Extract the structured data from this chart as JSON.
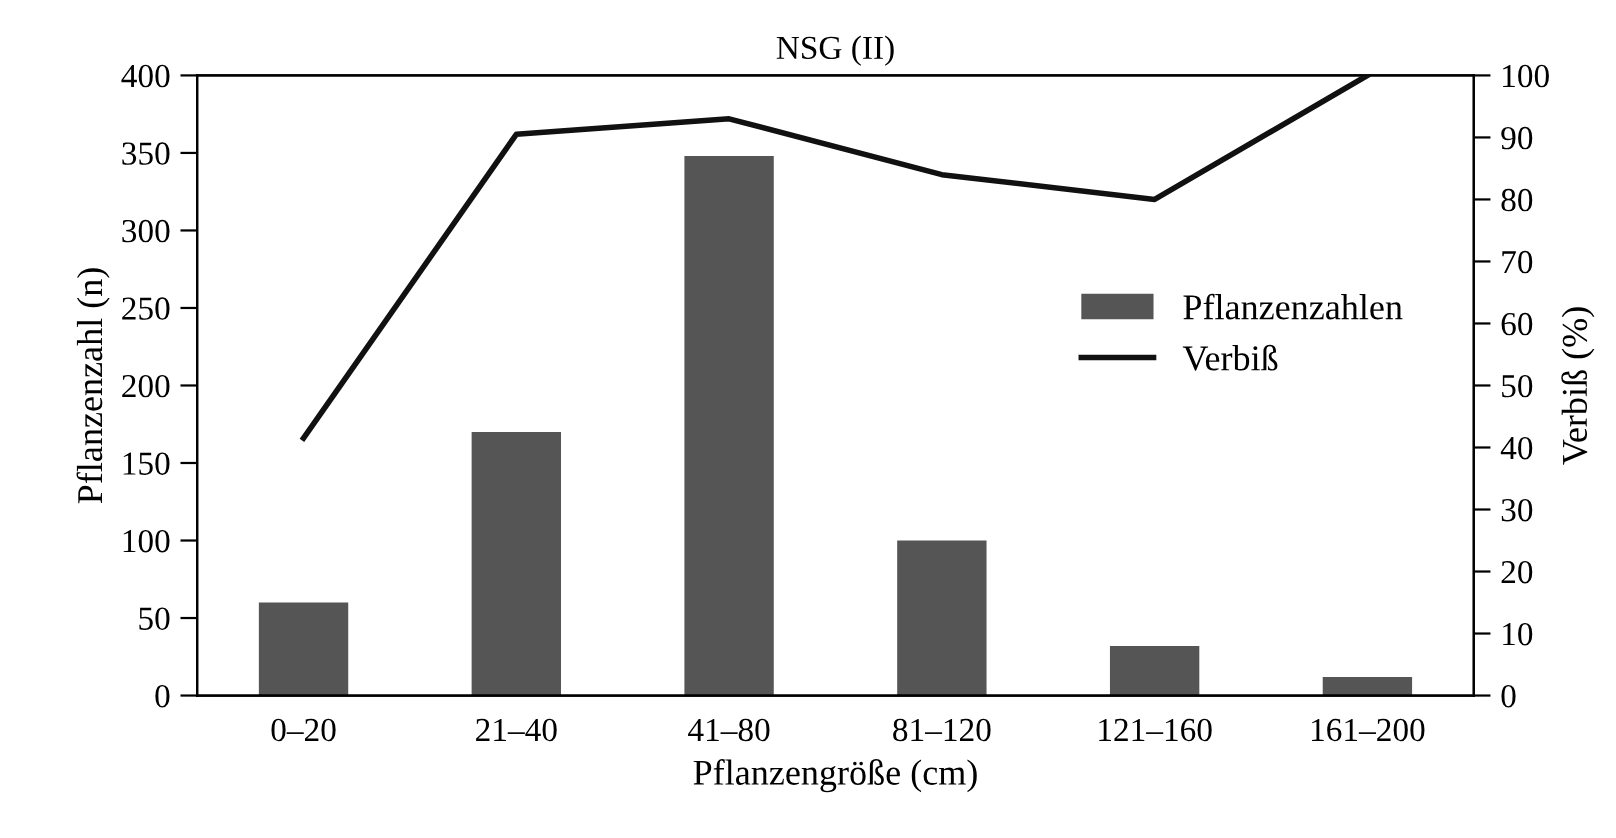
{
  "chart_data": {
    "type": "bar",
    "title": "NSG (II)",
    "xlabel": "Pflanzengröße (cm)",
    "ylabel": "Pflanzenzahl (n)",
    "y2label": "Verbiß (%)",
    "categories": [
      "0–20",
      "21–40",
      "41–80",
      "81–120",
      "121–160",
      "161–200"
    ],
    "series": [
      {
        "name": "Pflanzenzahlen",
        "color": "#555555",
        "values": [
          60,
          170,
          348,
          100,
          32,
          12
        ]
      },
      {
        "name": "Verbiß",
        "type": "line",
        "axis": "y2",
        "color": "#111111",
        "values": [
          41.5,
          90.5,
          93,
          84,
          80,
          100
        ]
      }
    ],
    "ylim": [
      0,
      400
    ],
    "yticks": [
      0,
      50,
      100,
      150,
      200,
      250,
      300,
      350,
      400
    ],
    "y2lim": [
      0,
      100
    ],
    "y2ticks": [
      0,
      10,
      20,
      30,
      40,
      50,
      60,
      70,
      80,
      90,
      100
    ],
    "grid": false,
    "legend": "right",
    "marker": "none",
    "line_style": "solid"
  }
}
